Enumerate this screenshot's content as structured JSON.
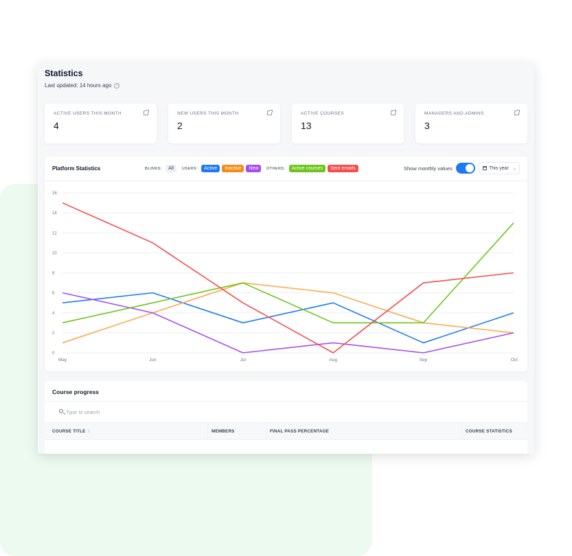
{
  "header": {
    "title": "Statistics",
    "last_updated": "Last updated: 14 hours ago",
    "help_icon": "question-circle-icon"
  },
  "stat_cards": [
    {
      "label": "ACTIVE USERS THIS MONTH",
      "value": "4",
      "icon": "external-link-icon"
    },
    {
      "label": "NEW USERS THIS MONTH",
      "value": "2",
      "icon": "external-link-icon"
    },
    {
      "label": "ACTIVE COURSES",
      "value": "13",
      "icon": "external-link-icon"
    },
    {
      "label": "MANAGERS AND ADMINS",
      "value": "3",
      "icon": "external-link-icon"
    }
  ],
  "platform_stats": {
    "title": "Platform Statistics",
    "blinks_label": "BLINKS:",
    "blinks_all": "All",
    "users_label": "USERS:",
    "others_label": "OTHERS:",
    "legend": {
      "active": "Active",
      "inactive": "Inactive",
      "new": "New",
      "active_courses": "Active courses",
      "sent_emails": "Sent emails"
    },
    "toggle_label": "Show monthly values",
    "toggle_on": true,
    "period": "This year"
  },
  "colors": {
    "active": "#1d7af3",
    "inactive": "#fba94d",
    "new": "#a64cf0",
    "active_courses": "#6cc51a",
    "sent_emails": "#f64c4c",
    "accent": "#1d7af3"
  },
  "chart_data": {
    "type": "line",
    "x": [
      "May",
      "Jun",
      "Jul",
      "Aug",
      "Sep",
      "Oct"
    ],
    "ylim": [
      0,
      16
    ],
    "yticks": [
      0,
      2,
      4,
      6,
      8,
      10,
      12,
      14,
      16
    ],
    "grid": true,
    "series": [
      {
        "name": "Active",
        "color": "#1d7af3",
        "values": [
          5,
          6,
          3,
          5,
          1,
          4
        ]
      },
      {
        "name": "Inactive",
        "color": "#fba94d",
        "values": [
          1,
          4,
          7,
          6,
          3,
          2
        ]
      },
      {
        "name": "New",
        "color": "#a64cf0",
        "values": [
          6,
          4,
          0,
          1,
          0,
          2
        ]
      },
      {
        "name": "Active courses",
        "color": "#6cc51a",
        "values": [
          3,
          5,
          7,
          3,
          3,
          13
        ]
      },
      {
        "name": "Sent emails",
        "color": "#f64c4c",
        "values": [
          15,
          11,
          5,
          0,
          7,
          8
        ]
      }
    ]
  },
  "course_progress": {
    "title": "Course progress",
    "search_placeholder": "Type to search",
    "columns": [
      "COURSE TITLE",
      "MEMBERS",
      "FINAL PASS PERCENTAGE",
      "COURSE STATISTICS"
    ]
  }
}
